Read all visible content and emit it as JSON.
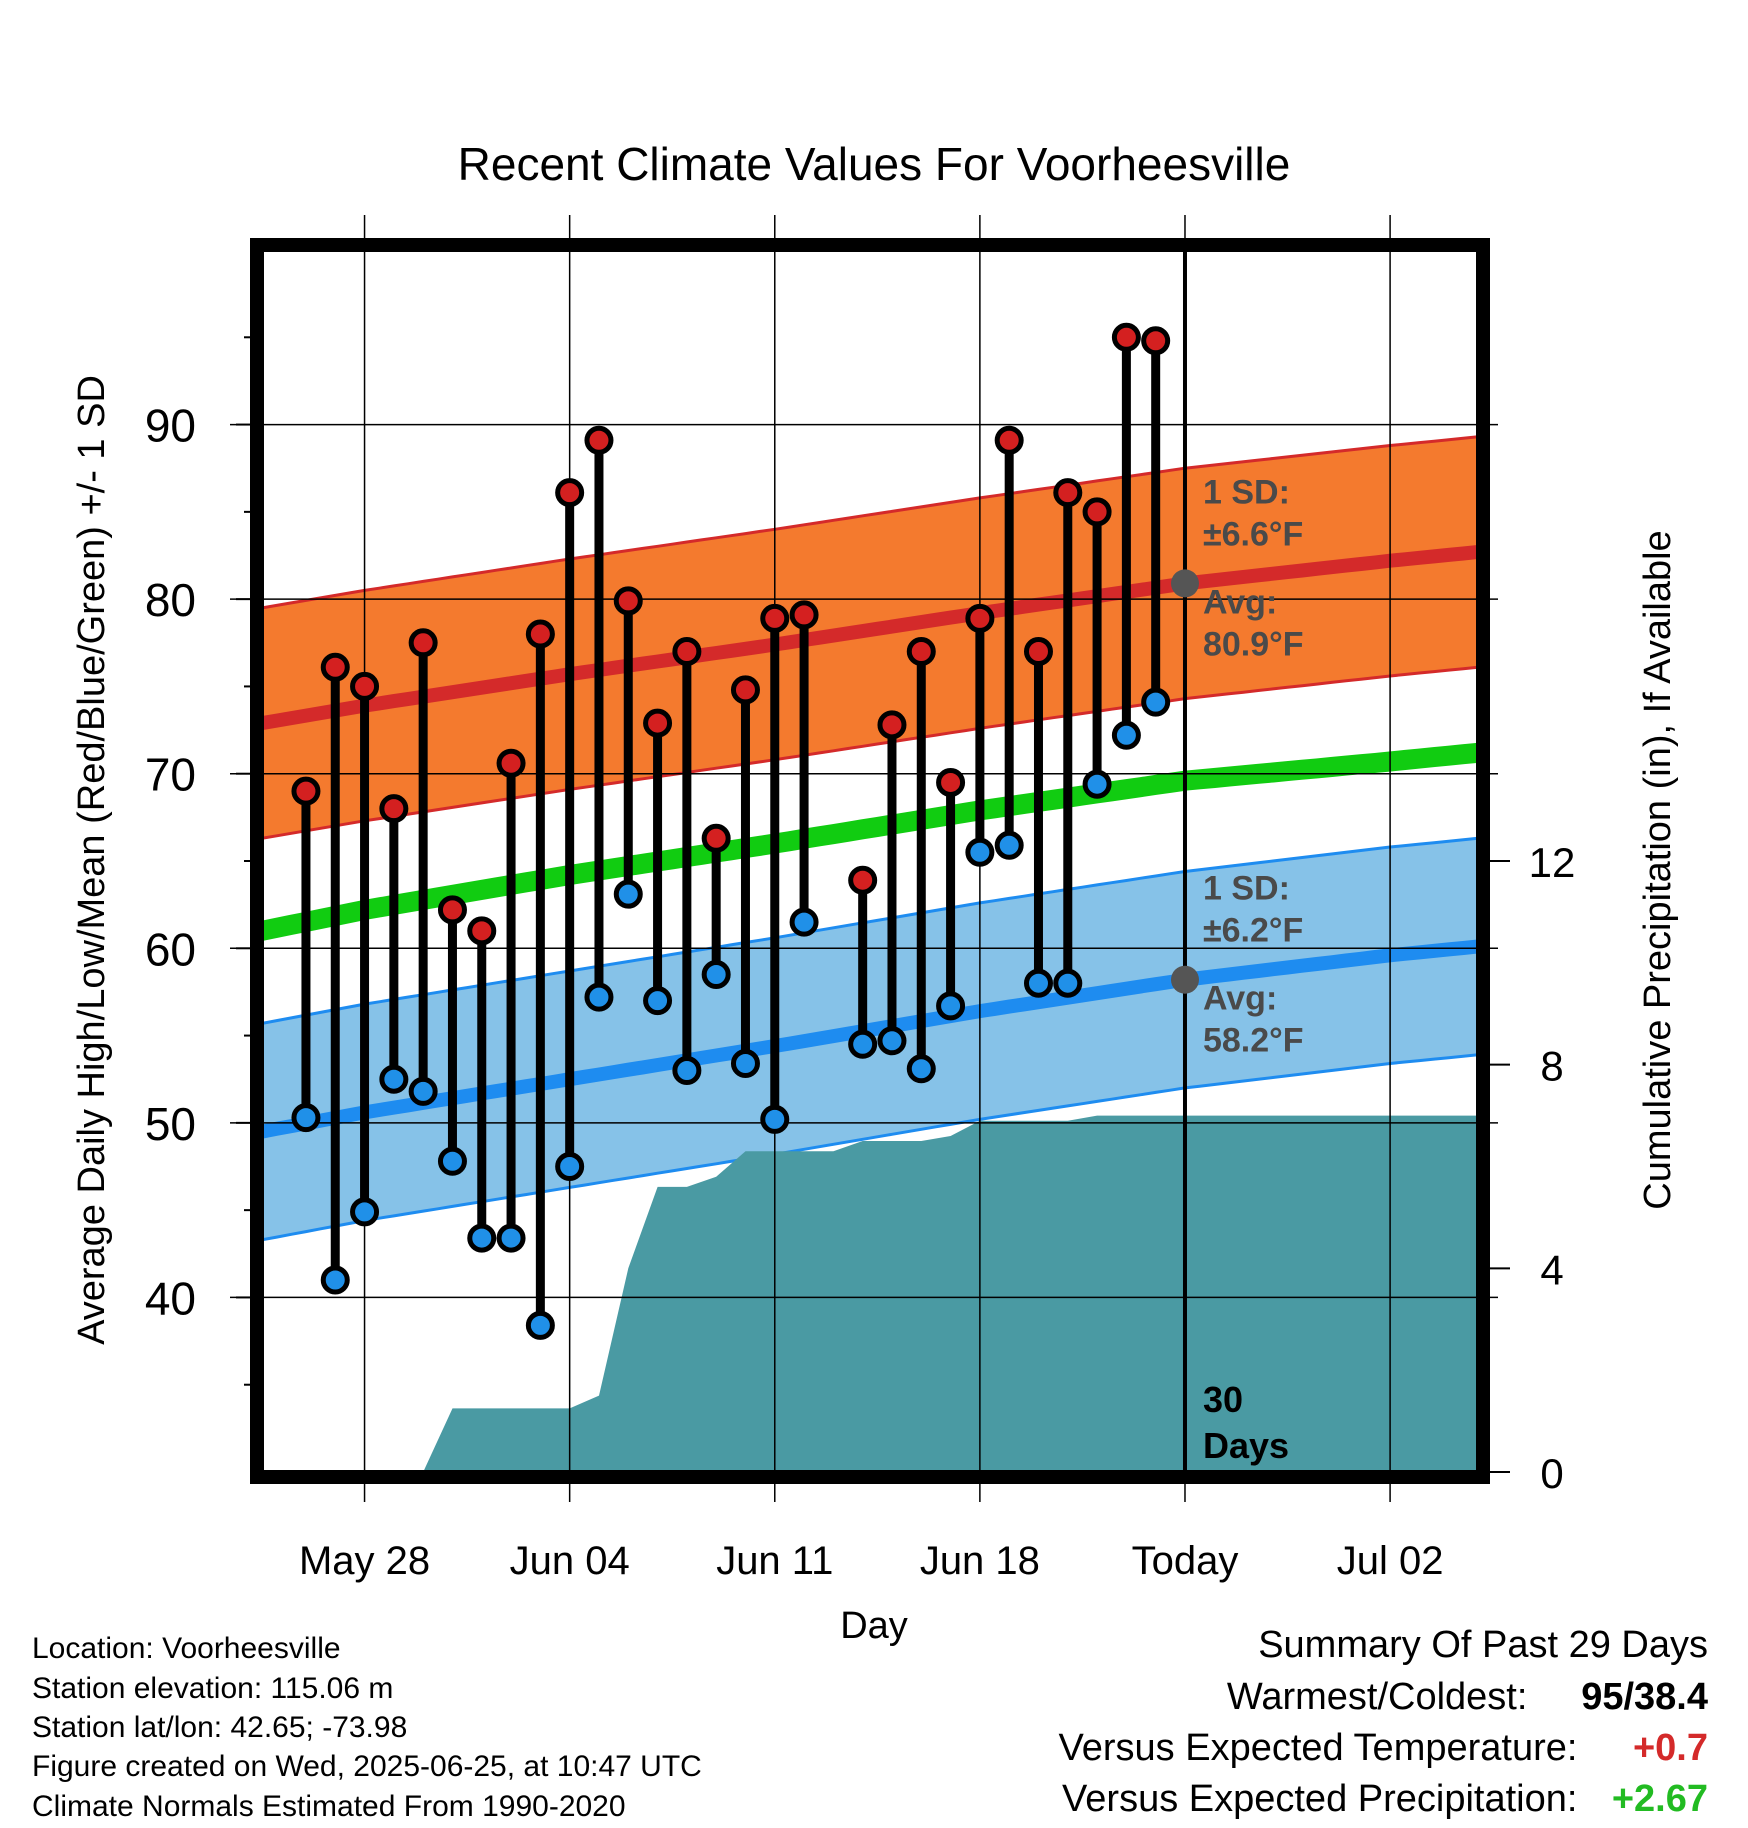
{
  "chart_data": {
    "type": "line",
    "title": "Recent Climate Values For Voorheesville",
    "xlabel": "Day",
    "ylabel": "Average Daily High/Low/Mean (Red/Blue/Green) +/- 1 SD",
    "y2label": "Cumulative Precipitation (in), If Available",
    "ylim": [
      30,
      100
    ],
    "y2lim": [
      0,
      24
    ],
    "yticks": [
      40,
      50,
      60,
      70,
      80,
      90
    ],
    "y2ticks": [
      0,
      4,
      8,
      12
    ],
    "xlim": [
      -3.5,
      38
    ],
    "xticks": [
      {
        "x": 0,
        "label": "May 28"
      },
      {
        "x": 7,
        "label": "Jun 04"
      },
      {
        "x": 14,
        "label": "Jun 11"
      },
      {
        "x": 21,
        "label": "Jun 18"
      },
      {
        "x": 28,
        "label": "Today"
      },
      {
        "x": 35,
        "label": "Jul 02"
      }
    ],
    "days": [
      -2,
      -1,
      0,
      1,
      2,
      3,
      4,
      5,
      6,
      7,
      8,
      9,
      10,
      11,
      12,
      13,
      14,
      15,
      16,
      17,
      18,
      19,
      20,
      21,
      22,
      23,
      24,
      25,
      26,
      27
    ],
    "highs": [
      69,
      76.1,
      75,
      68,
      77.5,
      62.2,
      61,
      70.6,
      78,
      86.1,
      89.1,
      79.9,
      72.9,
      77,
      66.3,
      74.8,
      78.9,
      79.1,
      null,
      63.9,
      72.8,
      77,
      69.5,
      78.9,
      89.1,
      77,
      86.1,
      85,
      95,
      94.8
    ],
    "lows": [
      50.3,
      41,
      44.9,
      52.5,
      51.8,
      47.8,
      43.4,
      43.4,
      38.4,
      47.5,
      57.2,
      63.1,
      57,
      53,
      58.5,
      53.4,
      50.2,
      61.5,
      null,
      54.5,
      54.7,
      53.1,
      56.7,
      65.5,
      65.9,
      58,
      58,
      69.4,
      72.2,
      74.1
    ],
    "normal_high": {
      "x": [
        -3.5,
        0,
        7,
        14,
        21,
        28,
        35,
        38
      ],
      "values": [
        72.9,
        73.9,
        75.7,
        77.4,
        79.2,
        80.9,
        82.2,
        82.7
      ],
      "sd": 6.6
    },
    "normal_low": {
      "x": [
        -3.5,
        0,
        7,
        14,
        21,
        28,
        35,
        38
      ],
      "values": [
        49.5,
        50.6,
        52.5,
        54.4,
        56.4,
        58.2,
        59.6,
        60.1
      ],
      "sd": 6.2
    },
    "normal_mean": {
      "x": [
        -3.5,
        0,
        7,
        14,
        21,
        28,
        35,
        38
      ],
      "values": [
        61.0,
        62.2,
        64.2,
        66.0,
        67.9,
        69.6,
        70.7,
        71.2
      ]
    },
    "precip": {
      "x": [
        2,
        3,
        4,
        5,
        6,
        7,
        8,
        9,
        10,
        11,
        12,
        13,
        14,
        15,
        16,
        17,
        18,
        19,
        20,
        21,
        22,
        23,
        24,
        25,
        26,
        27,
        28,
        38
      ],
      "values": [
        0,
        1.25,
        1.25,
        1.25,
        1.25,
        1.25,
        1.5,
        4.0,
        5.6,
        5.6,
        5.8,
        6.3,
        6.3,
        6.3,
        6.3,
        6.5,
        6.5,
        6.5,
        6.6,
        6.9,
        6.9,
        6.9,
        6.9,
        7.0,
        7.0,
        7.0,
        7.0,
        7.0
      ]
    },
    "today_x": 28,
    "annotations": {
      "high_sd_label": "1 SD:",
      "high_sd_value": "±6.6°F",
      "high_avg_label": "Avg:",
      "high_avg_value": "80.9°F",
      "low_sd_label": "1 SD:",
      "low_sd_value": "±6.2°F",
      "low_avg_label": "Avg:",
      "low_avg_value": "58.2°F",
      "days_num": "30",
      "days_word": "Days"
    },
    "colors": {
      "high_band": "#f47a2e",
      "high_line": "#d42a2a",
      "low_band": "#86c2e8",
      "low_line": "#1e8cf0",
      "mean_line": "#11cc11",
      "precip": "#4a9aa3",
      "high_dot": "#d42020",
      "low_dot": "#2090e8",
      "annotation": "#4a4a4a"
    }
  },
  "meta": {
    "location": "Location: Voorheesville",
    "elevation": "Station elevation: 115.06 m",
    "latlon": "Station lat/lon: 42.65; -73.98",
    "created": "Figure created on Wed, 2025-06-25, at 10:47 UTC",
    "normals": "Climate Normals Estimated From 1990-2020"
  },
  "summary": {
    "title": "Summary Of Past 29 Days",
    "warmest_label": "Warmest/Coldest:",
    "warmest_value": "95/38.4",
    "temp_label": "Versus Expected Temperature:",
    "temp_value": "+0.7",
    "temp_color": "#d42a2a",
    "precip_label": "Versus Expected Precipitation:",
    "precip_value": "+2.67",
    "precip_color": "#22bb22"
  }
}
